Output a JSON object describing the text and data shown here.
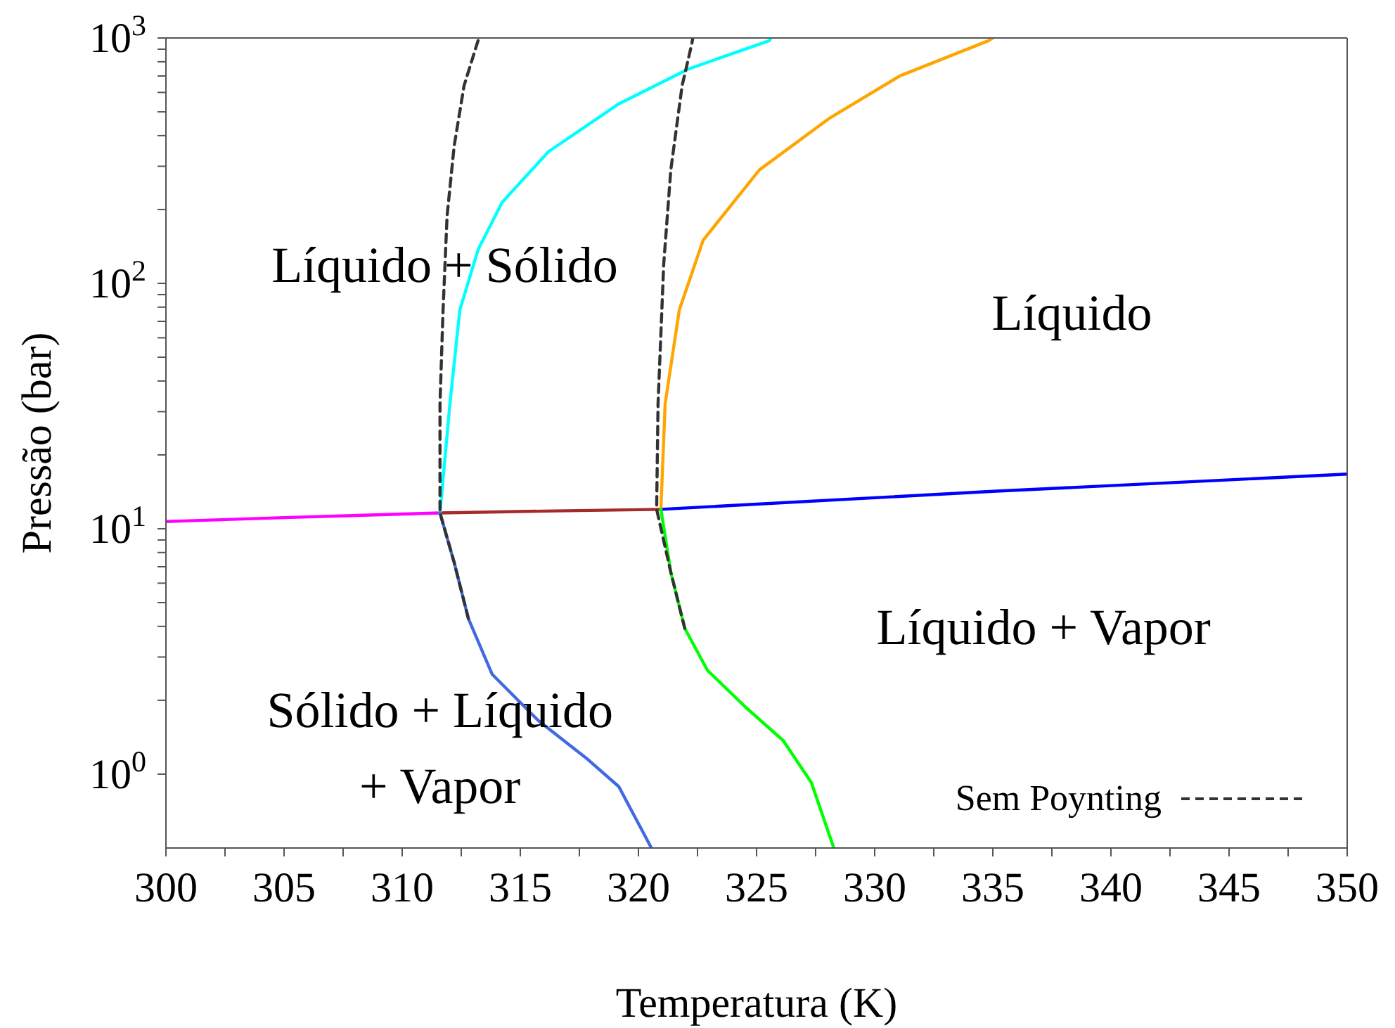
{
  "chart_data": {
    "type": "line",
    "xlabel": "Temperatura (K)",
    "ylabel": "Pressão (bar)",
    "log": "y",
    "grid": false,
    "legend": "bottom right",
    "marker": "none",
    "xlim": [
      300,
      350
    ],
    "xticks": [
      300,
      {
        "value": 302.5,
        "label": null
      },
      305,
      {
        "value": 307.5,
        "label": null
      },
      310,
      {
        "value": 312.5,
        "label": null
      },
      315,
      {
        "value": 317.5,
        "label": null
      },
      320,
      {
        "value": 322.5,
        "label": null
      },
      325,
      {
        "value": 327.5,
        "label": null
      },
      330,
      {
        "value": 332.5,
        "label": null
      },
      335,
      {
        "value": 337.5,
        "label": null
      },
      340,
      {
        "value": 342.5,
        "label": null
      },
      345,
      {
        "value": 347.5,
        "label": null
      },
      350
    ],
    "ylim": [
      0.5,
      1000
    ],
    "yticks": [
      {
        "value": 1,
        "label": "10$^{0}$"
      },
      {
        "value": 2,
        "label": null
      },
      {
        "value": 3,
        "label": null
      },
      {
        "value": 4,
        "label": null
      },
      {
        "value": 5,
        "label": null
      },
      {
        "value": 6,
        "label": null
      },
      {
        "value": 7,
        "label": null
      },
      {
        "value": 8,
        "label": null
      },
      {
        "value": 9,
        "label": null
      },
      {
        "value": 10,
        "label": "10$^{1}$"
      },
      {
        "value": 20,
        "label": null
      },
      {
        "value": 30,
        "label": null
      },
      {
        "value": 40,
        "label": null
      },
      {
        "value": 50,
        "label": null
      },
      {
        "value": 60,
        "label": null
      },
      {
        "value": 70,
        "label": null
      },
      {
        "value": 80,
        "label": null
      },
      {
        "value": 90,
        "label": null
      },
      {
        "value": 100,
        "label": "10$^{2}$"
      },
      {
        "value": 200,
        "label": null
      },
      {
        "value": 300,
        "label": null
      },
      {
        "value": 400,
        "label": null
      },
      {
        "value": 500,
        "label": null
      },
      {
        "value": 600,
        "label": null
      },
      {
        "value": 700,
        "label": null
      },
      {
        "value": 800,
        "label": null
      },
      {
        "value": 900,
        "label": null
      },
      {
        "value": 1000,
        "label": "10$^{3}$"
      }
    ],
    "series": [
      {
        "color": "#ff00ff",
        "line_style": "solid",
        "x": [
          300,
          305,
          311.6
        ],
        "values": [
          10.7,
          11.1,
          11.6
        ]
      },
      {
        "color": "#a52a2a",
        "line_style": "solid",
        "x": [
          311.6,
          316,
          320.95
        ],
        "values": [
          11.6,
          11.8,
          12.0
        ]
      },
      {
        "color": "#0000ff",
        "line_style": "solid",
        "x": [
          320.95,
          335,
          350
        ],
        "values": [
          12.0,
          14.2,
          16.7
        ]
      },
      {
        "color": "#00ffff",
        "line_style": "solid",
        "x": [
          311.6,
          312.02,
          312.44,
          313.21,
          314.23,
          316.19,
          319.17,
          322.14,
          325.54,
          325.6
        ],
        "values": [
          11.6,
          32.3,
          77.9,
          137,
          214,
          344,
          539,
          749,
          975,
          1000
        ]
      },
      {
        "color": "#ffa500",
        "line_style": "solid",
        "x": [
          320.95,
          321.13,
          321.73,
          322.74,
          325.12,
          328.1,
          331.07,
          334.82,
          335
        ],
        "values": [
          12.0,
          32.3,
          77.9,
          150,
          290,
          472,
          701,
          975,
          1000
        ]
      },
      {
        "color": "#4169e1",
        "line_style": "solid",
        "x": [
          311.6,
          312.2,
          312.8,
          313.81,
          315.77,
          317.8,
          319.17,
          320.55
        ],
        "values": [
          11.6,
          7.29,
          4.31,
          2.55,
          1.65,
          1.16,
          0.889,
          0.5
        ]
      },
      {
        "color": "#00ff00",
        "line_style": "solid",
        "x": [
          320.95,
          321.37,
          321.96,
          322.92,
          324.52,
          326.13,
          327.32,
          328.27
        ],
        "values": [
          12.0,
          6.65,
          3.93,
          2.65,
          1.88,
          1.37,
          0.924,
          0.5
        ]
      },
      {
        "name": "Sem Poynting",
        "color": "#333333",
        "line_style": "dashed",
        "x": [
          312.8,
          312.2,
          311.6,
          311.6,
          311.73,
          311.9,
          312.2,
          312.62,
          313.21,
          313.3
        ],
        "values": [
          4.31,
          7.29,
          11.6,
          32.3,
          77.9,
          188,
          363,
          640,
          975,
          1000
        ]
      },
      {
        "color": "#333333",
        "line_style": "dashed",
        "x": [
          321.96,
          321.37,
          320.77,
          320.83,
          321.07,
          321.37,
          321.85,
          322.26,
          322.3
        ],
        "values": [
          3.93,
          6.65,
          12.0,
          32.3,
          120,
          290,
          640,
          948,
          1000
        ]
      }
    ],
    "annotations": [
      "Líquido + Sólido",
      "Líquido",
      "Líquido + Vapor",
      "Sólido + Líquido\n+ Vapor"
    ]
  }
}
